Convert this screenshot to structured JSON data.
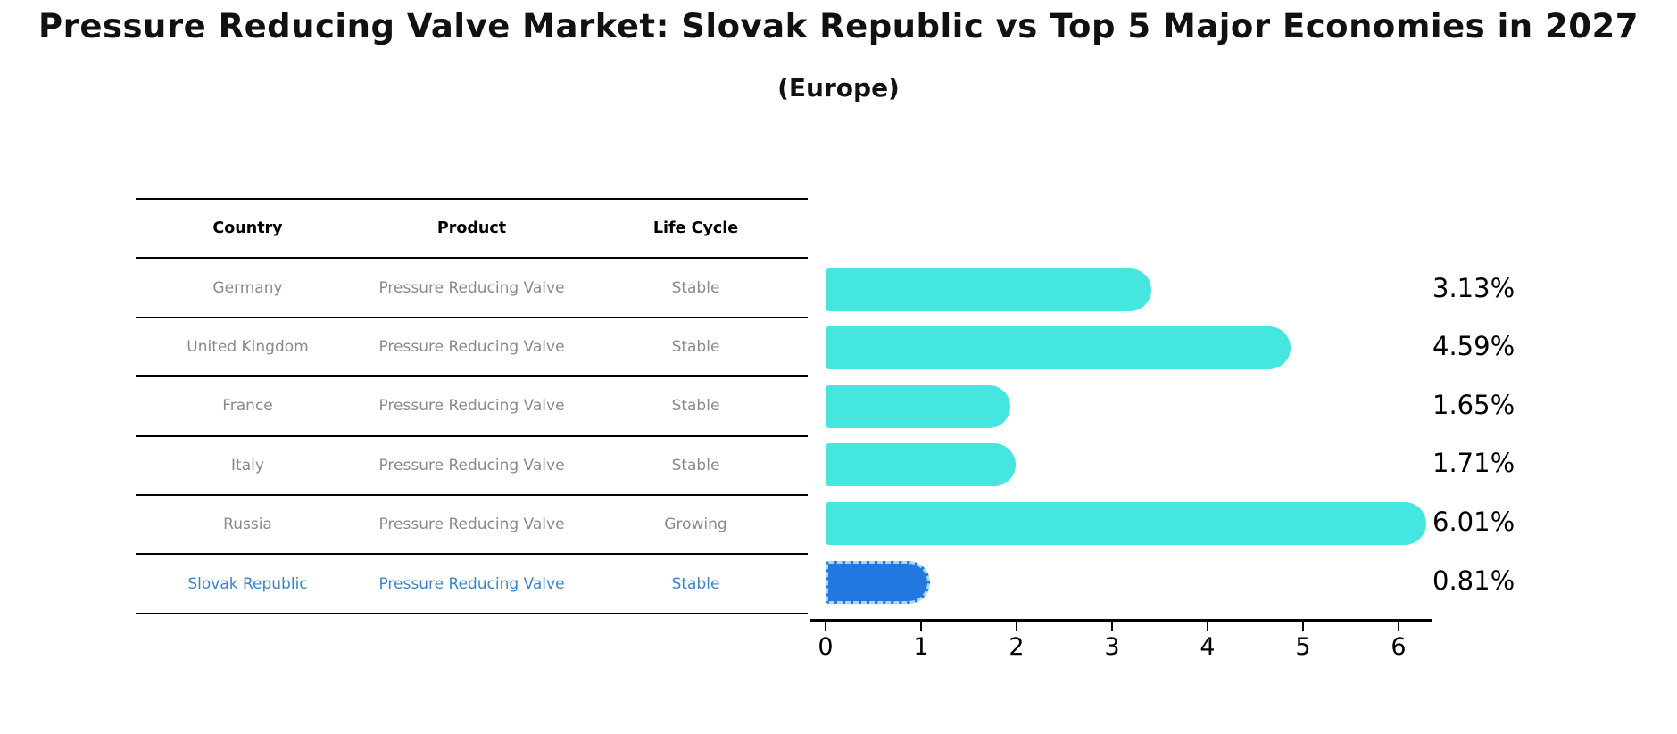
{
  "title": "Pressure Reducing Valve Market: Slovak Republic vs Top 5 Major Economies in 2027",
  "subtitle": "(Europe)",
  "table": {
    "headers": {
      "country": "Country",
      "product": "Product",
      "life_cycle": "Life Cycle"
    },
    "rows": [
      {
        "country": "Germany",
        "product": "Pressure Reducing Valve",
        "life_cycle": "Stable",
        "highlighted": false
      },
      {
        "country": "United Kingdom",
        "product": "Pressure Reducing Valve",
        "life_cycle": "Stable",
        "highlighted": false
      },
      {
        "country": "France",
        "product": "Pressure Reducing Valve",
        "life_cycle": "Stable",
        "highlighted": false
      },
      {
        "country": "Italy",
        "product": "Pressure Reducing Valve",
        "life_cycle": "Stable",
        "highlighted": false
      },
      {
        "country": "Russia",
        "product": "Pressure Reducing Valve",
        "life_cycle": "Growing",
        "highlighted": false
      },
      {
        "country": "Slovak Republic",
        "product": "Pressure Reducing Valve",
        "life_cycle": "Stable",
        "highlighted": true
      }
    ]
  },
  "chart_data": {
    "type": "bar",
    "orientation": "horizontal",
    "title": "Pressure Reducing Valve Market: Slovak Republic vs Top 5 Major Economies in 2027 (Europe)",
    "categories": [
      "Germany",
      "United Kingdom",
      "France",
      "Italy",
      "Russia",
      "Slovak Republic"
    ],
    "values": [
      3.13,
      4.59,
      1.65,
      1.71,
      6.01,
      0.81
    ],
    "value_labels": [
      "3.13%",
      "4.59%",
      "1.65%",
      "1.71%",
      "6.01%",
      "0.81%"
    ],
    "xlabel": "",
    "ylabel": "",
    "xlim": [
      0,
      6.5
    ],
    "xticks": [
      0,
      1,
      2,
      3,
      4,
      5,
      6
    ],
    "grid": false,
    "legend": false,
    "highlight_index": 5,
    "colors": {
      "bar": "#45e6e0",
      "highlight_bar": "#2277e0",
      "highlight_bar_border": "#a5daf2",
      "table_text": "#8a8a8a",
      "highlight_text": "#3b86c4",
      "title_text": "#111111"
    }
  }
}
